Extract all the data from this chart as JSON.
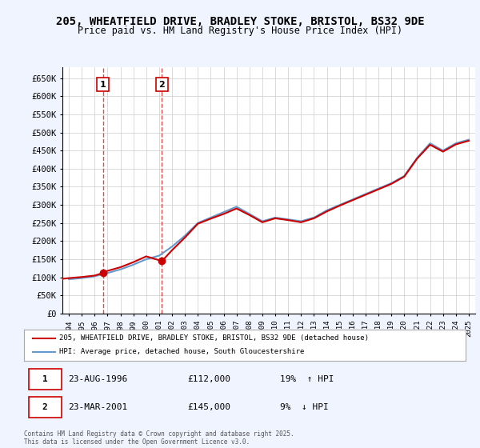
{
  "title": "205, WHEATFIELD DRIVE, BRADLEY STOKE, BRISTOL, BS32 9DE",
  "subtitle": "Price paid vs. HM Land Registry's House Price Index (HPI)",
  "ylabel": "",
  "xlabel": "",
  "ylim": [
    0,
    680000
  ],
  "yticks": [
    0,
    50000,
    100000,
    150000,
    200000,
    250000,
    300000,
    350000,
    400000,
    450000,
    500000,
    550000,
    600000,
    650000
  ],
  "ytick_labels": [
    "£0",
    "£50K",
    "£100K",
    "£150K",
    "£200K",
    "£250K",
    "£300K",
    "£350K",
    "£400K",
    "£450K",
    "£500K",
    "£550K",
    "£600K",
    "£650K"
  ],
  "xlim_start": 1993.5,
  "xlim_end": 2025.5,
  "background_color": "#f0f4ff",
  "plot_bg_color": "#ffffff",
  "grid_color": "#cccccc",
  "purchases": [
    {
      "label": "1",
      "date_str": "23-AUG-1996",
      "year": 1996.64,
      "price": 112000,
      "hpi_pct": "19%",
      "hpi_dir": "↑"
    },
    {
      "label": "2",
      "date_str": "23-MAR-2001",
      "year": 2001.22,
      "price": 145000,
      "hpi_pct": "9%",
      "hpi_dir": "↓"
    }
  ],
  "legend_line1": "205, WHEATFIELD DRIVE, BRADLEY STOKE, BRISTOL, BS32 9DE (detached house)",
  "legend_line2": "HPI: Average price, detached house, South Gloucestershire",
  "footnote": "Contains HM Land Registry data © Crown copyright and database right 2025.\nThis data is licensed under the Open Government Licence v3.0.",
  "red_color": "#cc0000",
  "blue_color": "#6699cc",
  "hpi_years": [
    1994,
    1995,
    1996,
    1997,
    1998,
    1999,
    2000,
    2001,
    2002,
    2003,
    2004,
    2005,
    2006,
    2007,
    2008,
    2009,
    2010,
    2011,
    2012,
    2013,
    2014,
    2015,
    2016,
    2017,
    2018,
    2019,
    2020,
    2021,
    2022,
    2023,
    2024,
    2025
  ],
  "hpi_values": [
    95000,
    98000,
    103000,
    112000,
    122000,
    135000,
    150000,
    160000,
    185000,
    215000,
    250000,
    265000,
    280000,
    295000,
    275000,
    255000,
    265000,
    260000,
    255000,
    265000,
    285000,
    300000,
    315000,
    330000,
    345000,
    360000,
    380000,
    430000,
    470000,
    450000,
    470000,
    480000
  ],
  "prop_years": [
    1993.5,
    1994,
    1995,
    1996,
    1996.64,
    1997,
    1998,
    1999,
    2000,
    2001.22,
    2002,
    2003,
    2004,
    2005,
    2006,
    2007,
    2008,
    2009,
    2010,
    2011,
    2012,
    2013,
    2014,
    2015,
    2016,
    2017,
    2018,
    2019,
    2020,
    2021,
    2022,
    2023,
    2024,
    2025
  ],
  "prop_values": [
    96000,
    98000,
    101000,
    105000,
    112000,
    118000,
    128000,
    142000,
    158000,
    145000,
    175000,
    210000,
    248000,
    262000,
    275000,
    290000,
    272000,
    252000,
    263000,
    258000,
    252000,
    263000,
    282000,
    298000,
    313000,
    328000,
    343000,
    358000,
    378000,
    428000,
    466000,
    447000,
    467000,
    477000
  ]
}
